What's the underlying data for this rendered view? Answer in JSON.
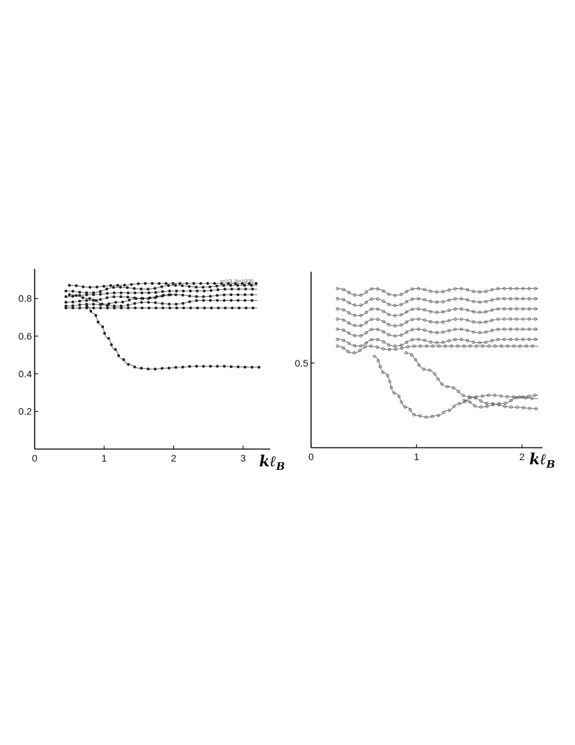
{
  "chart_data": [
    {
      "type": "scatter",
      "title": "",
      "xlabel_main": "kℓ",
      "xlabel_sub": "B",
      "ylabel": "",
      "xlim": [
        0,
        3.4
      ],
      "ylim": [
        0,
        0.95
      ],
      "x_ticks": [
        0,
        1,
        2,
        3
      ],
      "x_tick_labels": [
        "0",
        "1",
        "2",
        "3"
      ],
      "y_ticks": [
        0.2,
        0.4,
        0.6,
        0.8
      ],
      "y_tick_labels": [
        "0.2",
        "0.4",
        "0.6",
        "0.8"
      ],
      "annotation": "ν=1/3, N=10/30",
      "grid": false,
      "series": [
        {
          "points": [
            [
              0.45,
              0.75
            ],
            [
              0.8,
              0.75
            ],
            [
              1.2,
              0.75
            ],
            [
              1.6,
              0.75
            ],
            [
              2.0,
              0.75
            ],
            [
              2.4,
              0.75
            ],
            [
              2.8,
              0.75
            ],
            [
              3.2,
              0.75
            ]
          ]
        },
        {
          "points": [
            [
              0.45,
              0.76
            ],
            [
              0.8,
              0.77
            ],
            [
              1.2,
              0.76
            ],
            [
              1.6,
              0.78
            ],
            [
              2.0,
              0.77
            ],
            [
              2.4,
              0.79
            ],
            [
              2.8,
              0.79
            ],
            [
              3.2,
              0.79
            ]
          ]
        },
        {
          "points": [
            [
              0.45,
              0.78
            ],
            [
              0.8,
              0.79
            ],
            [
              1.2,
              0.81
            ],
            [
              1.6,
              0.8
            ],
            [
              2.0,
              0.82
            ],
            [
              2.4,
              0.81
            ],
            [
              2.8,
              0.82
            ],
            [
              3.2,
              0.82
            ]
          ]
        },
        {
          "points": [
            [
              0.45,
              0.81
            ],
            [
              0.8,
              0.82
            ],
            [
              1.2,
              0.83
            ],
            [
              1.6,
              0.83
            ],
            [
              2.0,
              0.84
            ],
            [
              2.4,
              0.84
            ],
            [
              2.8,
              0.85
            ],
            [
              3.2,
              0.85
            ]
          ]
        },
        {
          "points": [
            [
              0.45,
              0.84
            ],
            [
              0.8,
              0.83
            ],
            [
              1.2,
              0.86
            ],
            [
              1.6,
              0.85
            ],
            [
              2.0,
              0.87
            ],
            [
              2.4,
              0.86
            ],
            [
              2.8,
              0.87
            ],
            [
              3.2,
              0.87
            ]
          ]
        },
        {
          "points": [
            [
              0.5,
              0.87
            ],
            [
              0.8,
              0.86
            ],
            [
              1.2,
              0.87
            ],
            [
              1.6,
              0.88
            ],
            [
              2.0,
              0.88
            ],
            [
              2.4,
              0.88
            ],
            [
              2.8,
              0.88
            ],
            [
              3.2,
              0.88
            ]
          ]
        },
        {
          "points": [
            [
              0.5,
              0.82
            ],
            [
              0.8,
              0.8
            ],
            [
              1.0,
              0.77
            ],
            [
              1.2,
              0.78
            ],
            [
              1.5,
              0.8
            ],
            [
              2.0,
              0.82
            ]
          ]
        },
        {
          "points": [
            [
              0.75,
              0.76
            ],
            [
              0.85,
              0.72
            ],
            [
              0.95,
              0.66
            ],
            [
              1.05,
              0.59
            ],
            [
              1.15,
              0.53
            ],
            [
              1.25,
              0.48
            ],
            [
              1.35,
              0.45
            ],
            [
              1.5,
              0.43
            ],
            [
              1.7,
              0.425
            ],
            [
              1.9,
              0.43
            ],
            [
              2.1,
              0.435
            ],
            [
              2.3,
              0.44
            ],
            [
              2.5,
              0.44
            ],
            [
              2.7,
              0.44
            ],
            [
              2.9,
              0.437
            ],
            [
              3.1,
              0.435
            ],
            [
              3.25,
              0.435
            ]
          ]
        }
      ]
    },
    {
      "type": "scatter",
      "title": "",
      "xlabel_main": "kℓ",
      "xlabel_sub": "B",
      "ylabel": "",
      "xlim": [
        0,
        2.2
      ],
      "ylim": [
        0.25,
        0.77
      ],
      "x_ticks": [
        0,
        1,
        2
      ],
      "x_tick_labels": [
        "0",
        "1",
        "2"
      ],
      "y_ticks": [
        0.5
      ],
      "y_tick_labels": [
        "0.5"
      ],
      "grid": false,
      "series": [
        {
          "points": [
            [
              0.25,
              0.72
            ],
            [
              0.45,
              0.7
            ],
            [
              0.6,
              0.72
            ],
            [
              0.8,
              0.7
            ],
            [
              1.0,
              0.72
            ],
            [
              1.2,
              0.71
            ],
            [
              1.4,
              0.72
            ],
            [
              1.6,
              0.71
            ],
            [
              1.8,
              0.72
            ],
            [
              2.15,
              0.72
            ]
          ]
        },
        {
          "points": [
            [
              0.25,
              0.69
            ],
            [
              0.45,
              0.67
            ],
            [
              0.6,
              0.69
            ],
            [
              0.8,
              0.67
            ],
            [
              1.0,
              0.69
            ],
            [
              1.2,
              0.68
            ],
            [
              1.4,
              0.69
            ],
            [
              1.6,
              0.68
            ],
            [
              1.8,
              0.69
            ],
            [
              2.15,
              0.69
            ]
          ]
        },
        {
          "points": [
            [
              0.25,
              0.66
            ],
            [
              0.45,
              0.64
            ],
            [
              0.6,
              0.66
            ],
            [
              0.8,
              0.64
            ],
            [
              1.0,
              0.66
            ],
            [
              1.2,
              0.65
            ],
            [
              1.4,
              0.66
            ],
            [
              1.6,
              0.65
            ],
            [
              1.8,
              0.66
            ],
            [
              2.15,
              0.66
            ]
          ]
        },
        {
          "points": [
            [
              0.25,
              0.63
            ],
            [
              0.45,
              0.61
            ],
            [
              0.6,
              0.63
            ],
            [
              0.8,
              0.61
            ],
            [
              1.0,
              0.63
            ],
            [
              1.2,
              0.62
            ],
            [
              1.4,
              0.63
            ],
            [
              1.6,
              0.62
            ],
            [
              1.8,
              0.63
            ],
            [
              2.15,
              0.63
            ]
          ]
        },
        {
          "points": [
            [
              0.25,
              0.6
            ],
            [
              0.45,
              0.58
            ],
            [
              0.6,
              0.6
            ],
            [
              0.8,
              0.58
            ],
            [
              1.0,
              0.6
            ],
            [
              1.2,
              0.59
            ],
            [
              1.4,
              0.6
            ],
            [
              1.6,
              0.59
            ],
            [
              1.8,
              0.6
            ],
            [
              2.15,
              0.6
            ]
          ]
        },
        {
          "points": [
            [
              0.25,
              0.57
            ],
            [
              0.45,
              0.55
            ],
            [
              0.6,
              0.57
            ],
            [
              0.8,
              0.55
            ],
            [
              1.0,
              0.57
            ],
            [
              1.2,
              0.56
            ],
            [
              1.4,
              0.57
            ],
            [
              1.6,
              0.56
            ],
            [
              1.8,
              0.57
            ],
            [
              2.15,
              0.57
            ]
          ]
        },
        {
          "points": [
            [
              0.25,
              0.55
            ],
            [
              0.4,
              0.53
            ],
            [
              0.55,
              0.55
            ],
            [
              0.75,
              0.54
            ],
            [
              1.0,
              0.55
            ],
            [
              1.3,
              0.55
            ],
            [
              1.6,
              0.55
            ],
            [
              1.9,
              0.55
            ],
            [
              2.15,
              0.55
            ]
          ]
        },
        {
          "points": [
            [
              0.6,
              0.52
            ],
            [
              0.7,
              0.47
            ],
            [
              0.8,
              0.41
            ],
            [
              0.9,
              0.37
            ],
            [
              1.0,
              0.345
            ],
            [
              1.1,
              0.34
            ],
            [
              1.2,
              0.345
            ],
            [
              1.3,
              0.36
            ],
            [
              1.4,
              0.38
            ],
            [
              1.55,
              0.4
            ],
            [
              1.7,
              0.405
            ],
            [
              1.9,
              0.4
            ],
            [
              2.15,
              0.395
            ]
          ]
        },
        {
          "points": [
            [
              0.9,
              0.53
            ],
            [
              1.1,
              0.48
            ],
            [
              1.3,
              0.43
            ],
            [
              1.5,
              0.4
            ],
            [
              1.7,
              0.38
            ],
            [
              1.9,
              0.37
            ],
            [
              2.15,
              0.365
            ]
          ]
        },
        {
          "points": [
            [
              1.45,
              0.39
            ],
            [
              1.6,
              0.37
            ],
            [
              1.8,
              0.38
            ],
            [
              2.0,
              0.4
            ],
            [
              2.15,
              0.405
            ]
          ]
        }
      ]
    }
  ]
}
